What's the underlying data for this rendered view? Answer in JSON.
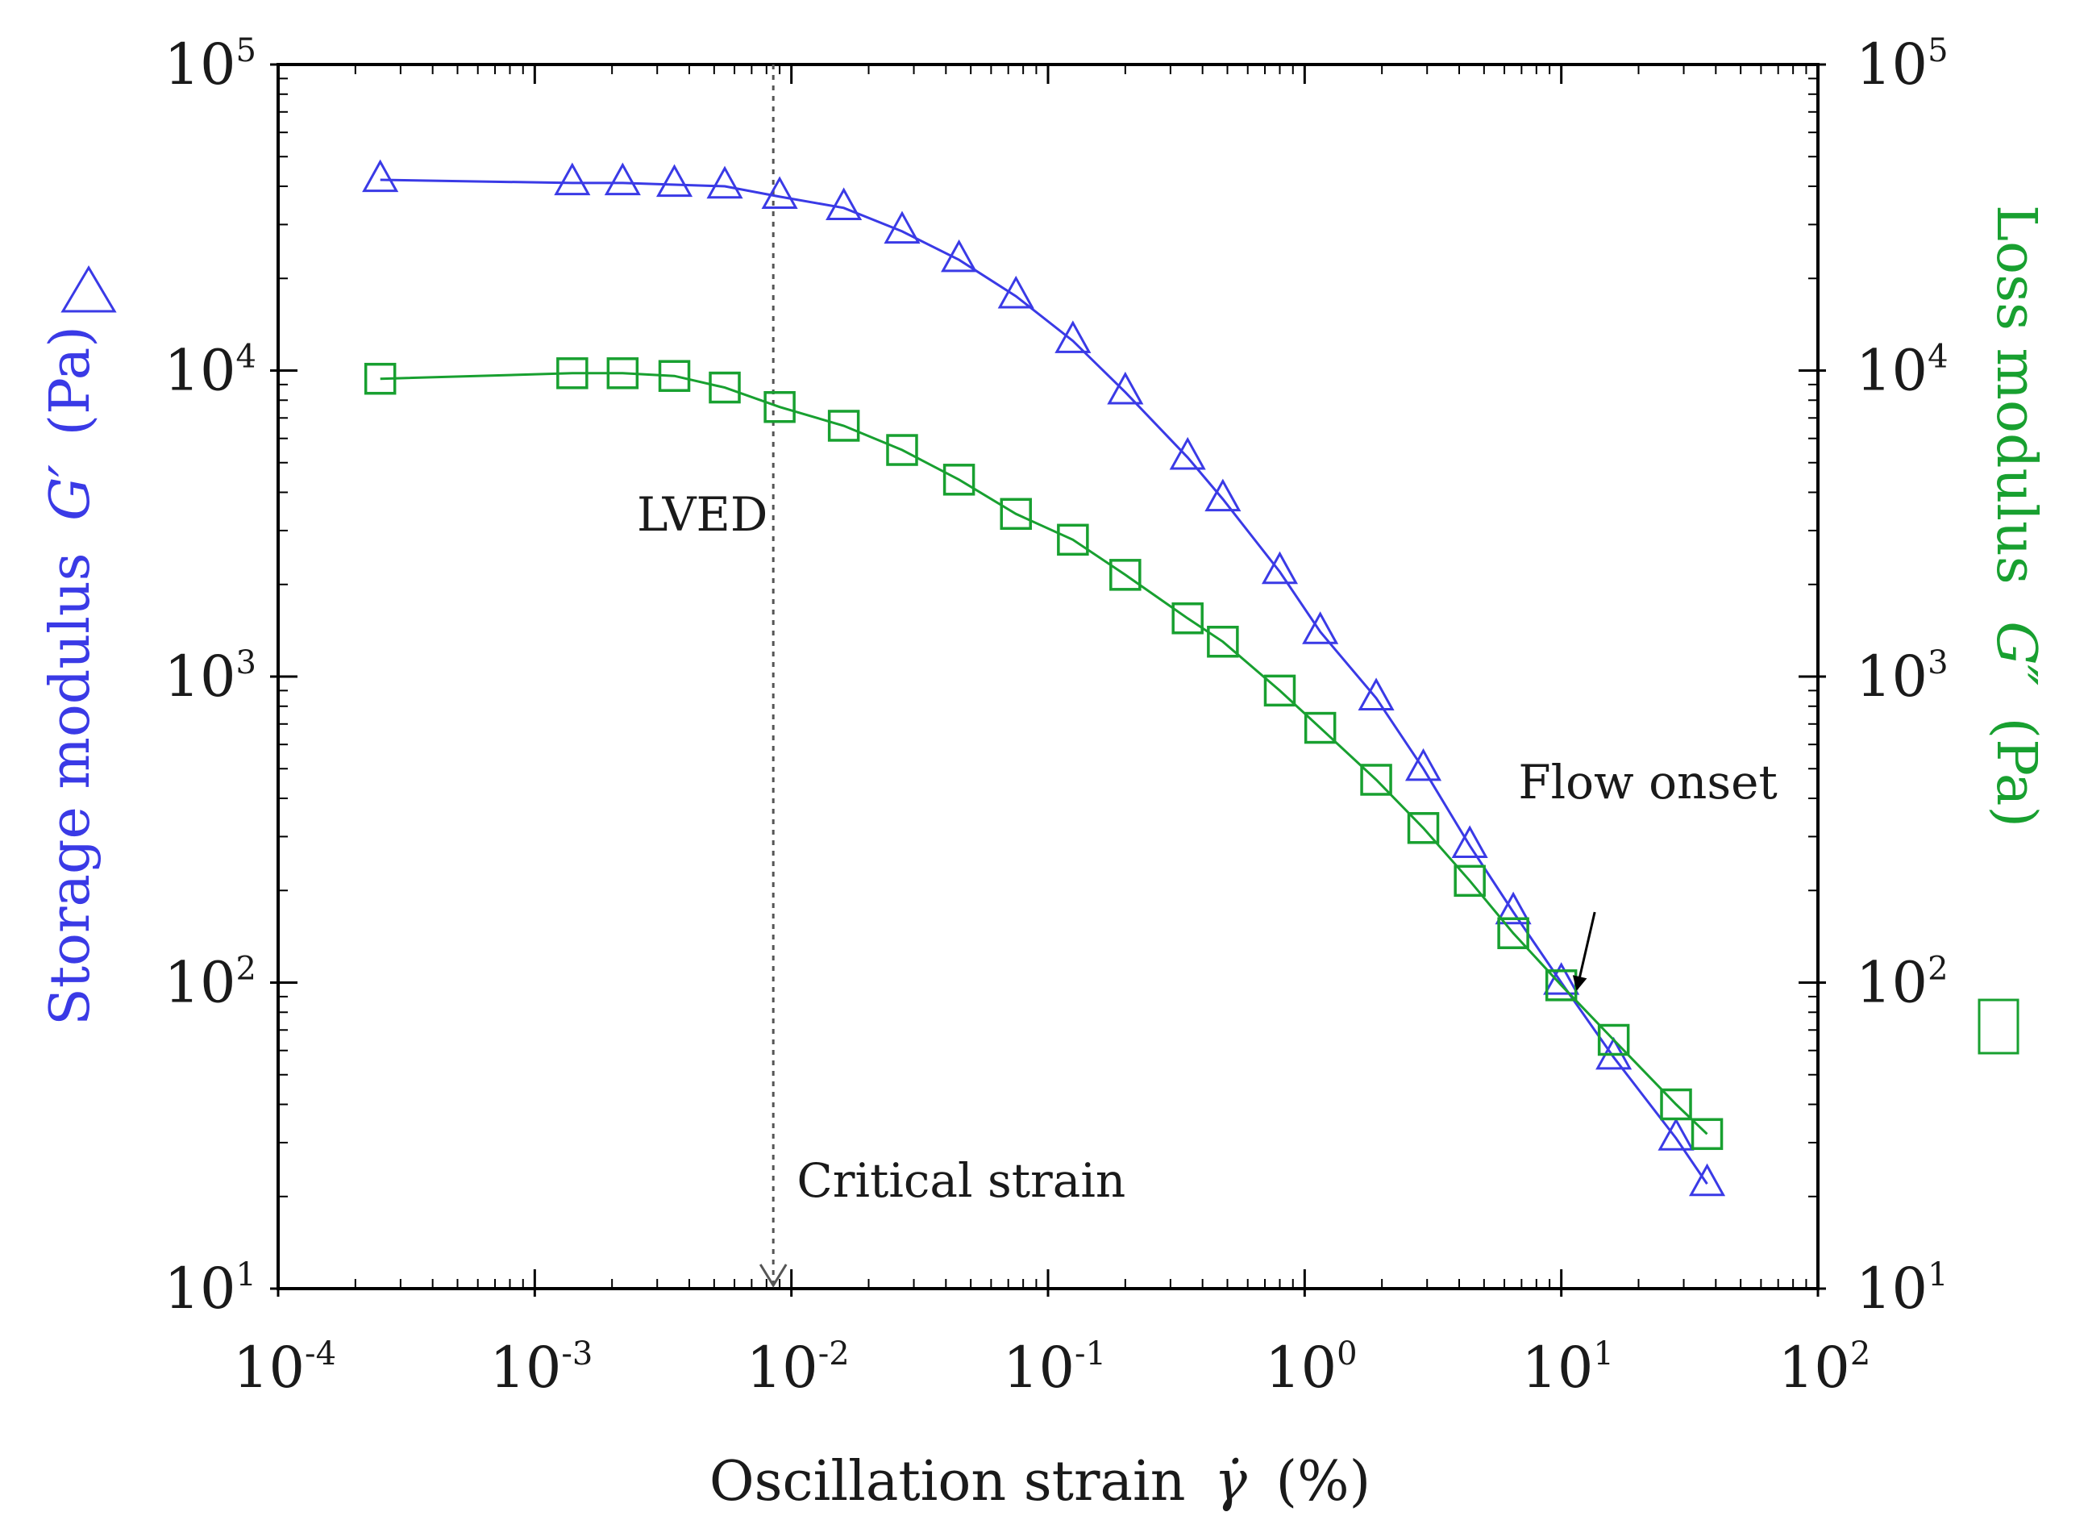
{
  "chart_data": {
    "type": "line",
    "x_scale": "log",
    "y_scale": "log",
    "xlabel": "Oscillation strain",
    "xlabel_symbol": "γ̇",
    "xlabel_unit": "(%)",
    "ylabel_left": {
      "prefix": "Storage modulus",
      "symbol": "G′",
      "unit": "(Pa)",
      "marker": "triangle"
    },
    "ylabel_right": {
      "prefix": "Loss modulus",
      "symbol": "G″",
      "unit": "(Pa)",
      "marker": "square"
    },
    "xlim": [
      0.0001,
      100
    ],
    "ylim": [
      10,
      100000
    ],
    "x_ticks": [
      {
        "base": "10",
        "exp": "-4",
        "value": 0.0001
      },
      {
        "base": "10",
        "exp": "-3",
        "value": 0.001
      },
      {
        "base": "10",
        "exp": "-2",
        "value": 0.01
      },
      {
        "base": "10",
        "exp": "-1",
        "value": 0.1
      },
      {
        "base": "10",
        "exp": "0",
        "value": 1
      },
      {
        "base": "10",
        "exp": "1",
        "value": 10
      },
      {
        "base": "10",
        "exp": "2",
        "value": 100
      }
    ],
    "y_ticks": [
      {
        "base": "10",
        "exp": "1",
        "value": 10
      },
      {
        "base": "10",
        "exp": "2",
        "value": 100
      },
      {
        "base": "10",
        "exp": "3",
        "value": 1000
      },
      {
        "base": "10",
        "exp": "4",
        "value": 10000
      },
      {
        "base": "10",
        "exp": "5",
        "value": 100000
      }
    ],
    "series": [
      {
        "name": "Storage modulus G′",
        "color": "#3a3ae6",
        "marker": "triangle",
        "x": [
          0.00025,
          0.0014,
          0.0022,
          0.0035,
          0.0055,
          0.009,
          0.016,
          0.027,
          0.045,
          0.075,
          0.125,
          0.2,
          0.35,
          0.48,
          0.8,
          1.15,
          1.9,
          2.9,
          4.4,
          6.5,
          10,
          16,
          28,
          37
        ],
        "y": [
          42000,
          41000,
          41000,
          40500,
          40000,
          37000,
          34000,
          28500,
          23000,
          17500,
          12500,
          8500,
          5200,
          3800,
          2200,
          1400,
          850,
          500,
          280,
          170,
          100,
          57,
          31,
          22
        ]
      },
      {
        "name": "Loss modulus G″",
        "color": "#18a030",
        "marker": "square",
        "x": [
          0.00025,
          0.0014,
          0.0022,
          0.0035,
          0.0055,
          0.009,
          0.016,
          0.027,
          0.045,
          0.075,
          0.125,
          0.2,
          0.35,
          0.48,
          0.8,
          1.15,
          1.9,
          2.9,
          4.4,
          6.5,
          10,
          16,
          28,
          37
        ],
        "y": [
          9400,
          9800,
          9800,
          9600,
          8800,
          7600,
          6600,
          5500,
          4400,
          3400,
          2800,
          2150,
          1550,
          1300,
          900,
          680,
          460,
          320,
          215,
          145,
          98,
          65,
          40,
          32
        ]
      }
    ],
    "annotations": [
      {
        "text": "LVED",
        "x": 0.0025,
        "y": 3000
      },
      {
        "text": "Critical strain",
        "x": 0.0105,
        "y": 20
      },
      {
        "text": "Flow onset",
        "x": 6.8,
        "y": 400
      }
    ],
    "critical_strain": {
      "x": 0.0085,
      "style": "dotted"
    },
    "flow_onset_arrow": {
      "from_x": 13.5,
      "from_y": 170,
      "to_x": 11.5,
      "to_y": 95
    }
  }
}
